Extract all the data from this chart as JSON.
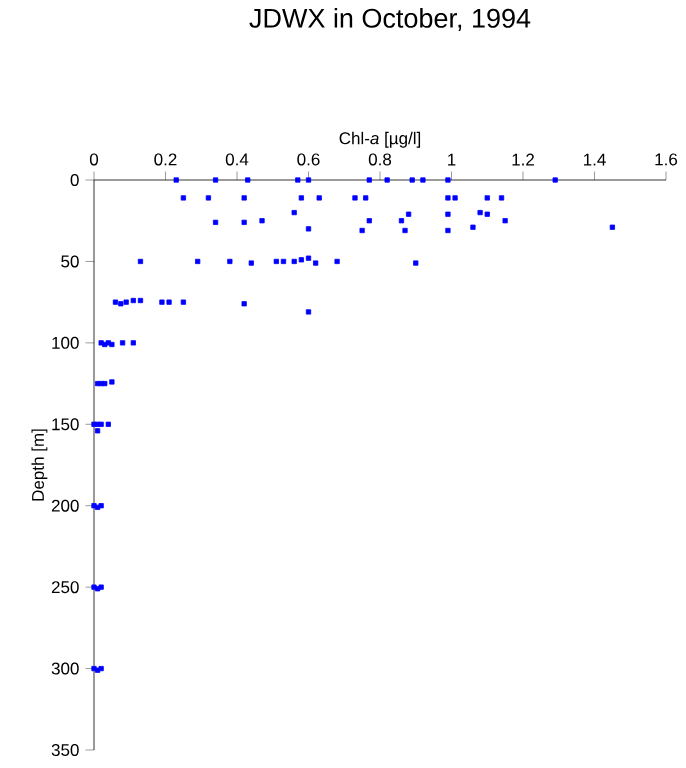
{
  "chart_data": {
    "type": "scatter",
    "title": "JDWX in October, 1994",
    "xlabel": "Chl-*a* [µg/l]",
    "ylabel": "Depth [m]",
    "xlim": [
      0,
      1.6
    ],
    "xticks": [
      0,
      0.2,
      0.4,
      0.6,
      0.8,
      1,
      1.2,
      1.4,
      1.6
    ],
    "ylim": [
      350,
      0
    ],
    "yticks": [
      0,
      50,
      100,
      150,
      200,
      250,
      300,
      350
    ],
    "marker": "square",
    "grid": false,
    "series": [
      {
        "color": "#0000ff",
        "x": [
          0.23,
          0.34,
          0.43,
          0.57,
          0.6,
          0.77,
          0.82,
          0.89,
          0.92,
          0.99,
          1.29,
          0.25,
          0.32,
          0.42,
          0.58,
          0.63,
          0.73,
          0.76,
          0.99,
          1.01,
          1.1,
          1.14,
          0.56,
          0.34,
          0.42,
          0.47,
          0.6,
          0.75,
          0.77,
          0.86,
          0.87,
          0.88,
          0.99,
          0.99,
          1.06,
          1.08,
          1.1,
          1.15,
          1.45,
          0.13,
          0.29,
          0.38,
          0.44,
          0.51,
          0.53,
          0.56,
          0.58,
          0.6,
          0.62,
          0.68,
          0.9,
          0.06,
          0.075,
          0.09,
          0.11,
          0.13,
          0.19,
          0.21,
          0.25,
          0.42,
          0.6,
          0.02,
          0.03,
          0.04,
          0.05,
          0.08,
          0.11,
          0.01,
          0.02,
          0.03,
          0.05,
          0,
          0.01,
          0.02,
          0.04,
          0.01,
          0,
          0.01,
          0.02,
          0,
          0.01,
          0.02,
          0,
          0.01,
          0.02
        ],
        "values": [
          0,
          0,
          0,
          0,
          0,
          0,
          0,
          0,
          0,
          0,
          0,
          11,
          11,
          11,
          11,
          11,
          11,
          11,
          11,
          11,
          11,
          11,
          20,
          26,
          26,
          25,
          30,
          31,
          25,
          25,
          31,
          21,
          21,
          31,
          29,
          20,
          21,
          25,
          29,
          50,
          50,
          50,
          51,
          50,
          50,
          50,
          49,
          48,
          51,
          50,
          51,
          75,
          76,
          75,
          74,
          74,
          75,
          75,
          75,
          76,
          81,
          100,
          101,
          100,
          101,
          100,
          100,
          125,
          125,
          125,
          124,
          150,
          150,
          150,
          150,
          154,
          200,
          201,
          200,
          250,
          251,
          250,
          300,
          301,
          300
        ]
      }
    ]
  }
}
